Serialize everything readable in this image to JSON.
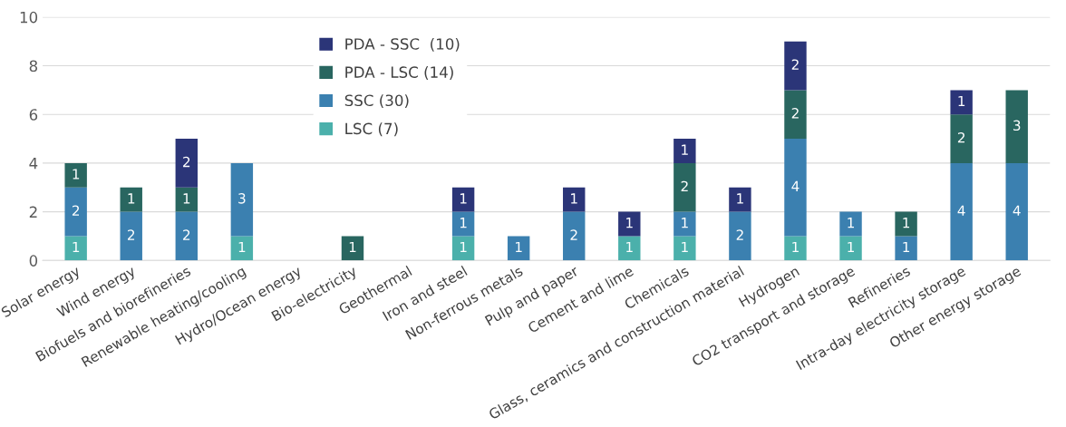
{
  "chart_data": {
    "type": "bar",
    "stacked": true,
    "data_labels": true,
    "grid": "y",
    "legend": "top",
    "ylim": [
      0,
      10
    ],
    "yticks": [
      0,
      2,
      4,
      6,
      8,
      10
    ],
    "categories": [
      "Solar energy",
      "Wind energy",
      "Biofuels and biorefineries",
      "Renewable heating/cooling",
      "Hydro/Ocean energy",
      "Bio-electricity",
      "Geothermal",
      "Iron and steel",
      "Non-ferrous metals",
      "Pulp and paper",
      "Cement and lime",
      "Chemicals",
      "Glass, ceramics and construction material",
      "Hydrogen",
      "CO2 transport and storage",
      "Refineries",
      "Intra-day electricity storage",
      "Other energy storage"
    ],
    "series": [
      {
        "name": "LSC (7)",
        "color": "#4bb0ab",
        "values": [
          1,
          null,
          null,
          1,
          null,
          null,
          null,
          1,
          null,
          null,
          1,
          1,
          null,
          1,
          1,
          null,
          null,
          null
        ]
      },
      {
        "name": "SSC (30)",
        "color": "#3b80b0",
        "values": [
          2,
          2,
          2,
          3,
          null,
          null,
          null,
          1,
          1,
          2,
          null,
          1,
          2,
          4,
          1,
          1,
          4,
          4
        ]
      },
      {
        "name": "PDA - LSC (14)",
        "color": "#296660",
        "values": [
          1,
          1,
          1,
          null,
          null,
          1,
          null,
          null,
          null,
          null,
          null,
          2,
          null,
          2,
          null,
          1,
          2,
          3
        ]
      },
      {
        "name": "PDA - SSC  (10)",
        "color": "#2b3578",
        "values": [
          null,
          null,
          2,
          null,
          null,
          null,
          null,
          1,
          null,
          1,
          1,
          1,
          1,
          2,
          null,
          null,
          1,
          null
        ]
      }
    ]
  }
}
